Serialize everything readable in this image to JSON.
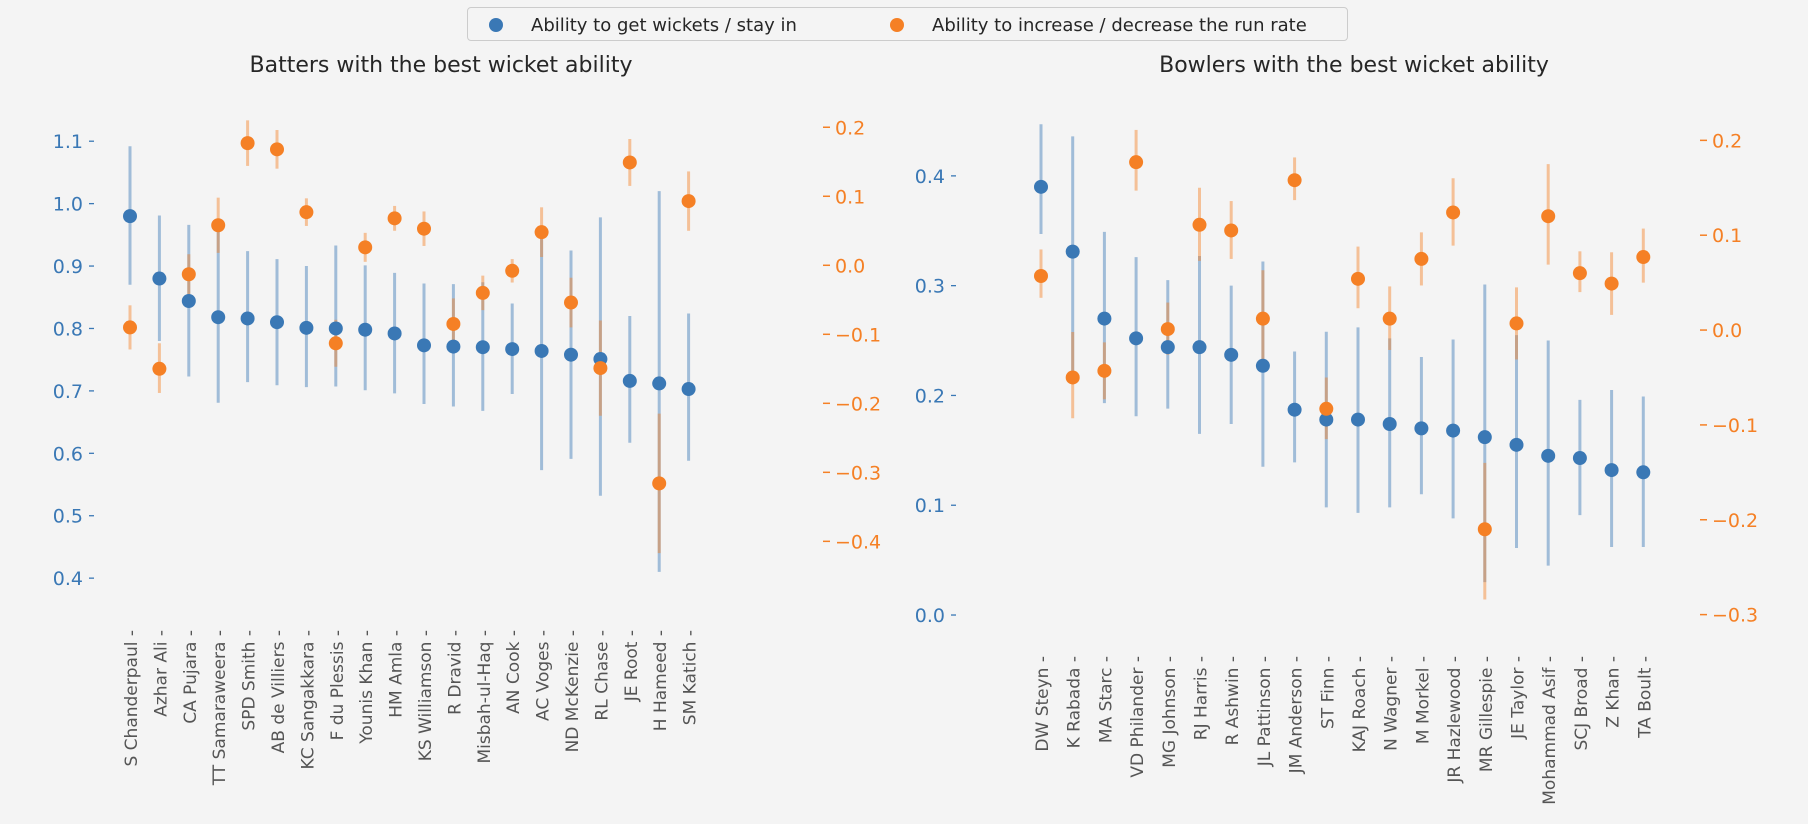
{
  "legend": {
    "wicket_label": "Ability to get wickets / stay in",
    "runrate_label": "Ability to increase / decrease the run rate"
  },
  "colors": {
    "wicket": "#3a78b5",
    "runrate": "#f58025",
    "left_axis": "#3a78b5",
    "right_axis": "#f58025",
    "background": "#f4f4f4"
  },
  "chart_data": [
    {
      "type": "scatter",
      "title": "Batters with the best wicket ability",
      "grid": false,
      "left_axis": {
        "series": "wicket",
        "ylim": [
          0.365,
          1.15
        ],
        "ticks": [
          "0.4",
          "0.5",
          "0.6",
          "0.7",
          "0.8",
          "0.9",
          "1.0",
          "1.1"
        ]
      },
      "right_axis": {
        "series": "runrate",
        "ylim": [
          -0.485,
          0.225
        ],
        "ticks": [
          "−0.4",
          "−0.3",
          "−0.2",
          "−0.1",
          "0.0",
          "0.1",
          "0.2"
        ]
      },
      "categories": [
        "S Chanderpaul",
        "Azhar Ali",
        "CA Pujara",
        "TT Samaraweera",
        "SPD Smith",
        "AB de Villiers",
        "KC Sangakkara",
        "F du Plessis",
        "Younis Khan",
        "HM Amla",
        "KS Williamson",
        "R Dravid",
        "Misbah-ul-Haq",
        "AN Cook",
        "AC Voges",
        "ND McKenzie",
        "RL Chase",
        "JE Root",
        "H Hameed",
        "SM Katich"
      ],
      "series": [
        {
          "name": "Ability to get wickets / stay in",
          "axis": "left",
          "values": [
            0.98,
            0.88,
            0.844,
            0.818,
            0.816,
            0.81,
            0.801,
            0.8,
            0.798,
            0.792,
            0.773,
            0.771,
            0.77,
            0.767,
            0.764,
            0.758,
            0.751,
            0.716,
            0.712,
            0.703
          ],
          "lower": [
            0.87,
            0.78,
            0.723,
            0.681,
            0.714,
            0.709,
            0.706,
            0.707,
            0.701,
            0.696,
            0.679,
            0.675,
            0.668,
            0.695,
            0.573,
            0.591,
            0.532,
            0.617,
            0.41,
            0.588
          ],
          "upper": [
            1.092,
            0.981,
            0.966,
            0.96,
            0.924,
            0.911,
            0.9,
            0.933,
            0.901,
            0.889,
            0.872,
            0.871,
            0.874,
            0.84,
            0.946,
            0.925,
            0.978,
            0.82,
            1.02,
            0.824
          ]
        },
        {
          "name": "Ability to increase / decrease the run rate",
          "axis": "right",
          "values": [
            -0.09,
            -0.15,
            -0.013,
            0.058,
            0.177,
            0.168,
            0.077,
            -0.113,
            0.026,
            0.068,
            0.053,
            -0.085,
            -0.04,
            -0.008,
            0.048,
            -0.054,
            -0.149,
            0.149,
            -0.316,
            0.093
          ],
          "lower": [
            -0.122,
            -0.185,
            -0.042,
            0.018,
            0.144,
            0.14,
            0.057,
            -0.147,
            0.005,
            0.05,
            0.028,
            -0.122,
            -0.065,
            -0.025,
            0.012,
            -0.09,
            -0.218,
            0.115,
            -0.417,
            0.05
          ],
          "upper": [
            -0.058,
            -0.113,
            0.016,
            0.098,
            0.21,
            0.196,
            0.097,
            -0.079,
            0.047,
            0.086,
            0.078,
            -0.048,
            -0.015,
            0.009,
            0.084,
            -0.018,
            -0.08,
            0.183,
            -0.215,
            0.136
          ]
        }
      ]
    },
    {
      "type": "scatter",
      "title": "Bowlers with the best wicket ability",
      "grid": false,
      "left_axis": {
        "series": "wicket",
        "ylim": [
          -0.01,
          0.46
        ],
        "ticks": [
          "0.0",
          "0.1",
          "0.2",
          "0.3",
          "0.4"
        ]
      },
      "right_axis": {
        "series": "runrate",
        "ylim": [
          -0.312,
          0.232
        ],
        "ticks": [
          "−0.3",
          "−0.2",
          "−0.1",
          "0.0",
          "0.1",
          "0.2"
        ]
      },
      "categories": [
        "DW Steyn",
        "K Rabada",
        "MA Starc",
        "VD Philander",
        "MG Johnson",
        "RJ Harris",
        "R Ashwin",
        "JL Pattinson",
        "JM Anderson",
        "ST Finn",
        "KAJ Roach",
        "N Wagner",
        "M Morkel",
        "JR Hazlewood",
        "MR Gillespie",
        "JE Taylor",
        "Mohammad Asif",
        "SCJ Broad",
        "Z Khan",
        "TA Boult"
      ],
      "series": [
        {
          "name": "Ability to get wickets / stay in",
          "axis": "left",
          "values": [
            0.39,
            0.331,
            0.27,
            0.252,
            0.244,
            0.244,
            0.237,
            0.227,
            0.187,
            0.178,
            0.178,
            0.174,
            0.17,
            0.168,
            0.162,
            0.155,
            0.145,
            0.143,
            0.132,
            0.13
          ],
          "lower": [
            0.347,
            0.217,
            0.193,
            0.181,
            0.188,
            0.165,
            0.174,
            0.135,
            0.139,
            0.098,
            0.093,
            0.098,
            0.11,
            0.088,
            0.03,
            0.061,
            0.045,
            0.091,
            0.062,
            0.062
          ],
          "upper": [
            0.447,
            0.436,
            0.349,
            0.326,
            0.305,
            0.327,
            0.3,
            0.322,
            0.24,
            0.258,
            0.262,
            0.252,
            0.235,
            0.251,
            0.301,
            0.255,
            0.25,
            0.196,
            0.205,
            0.199
          ]
        },
        {
          "name": "Ability to increase / decrease the run rate",
          "axis": "right",
          "values": [
            0.057,
            -0.05,
            -0.043,
            0.177,
            0.001,
            0.111,
            0.105,
            0.012,
            0.158,
            -0.083,
            0.054,
            0.012,
            0.075,
            0.124,
            -0.21,
            0.007,
            0.12,
            0.06,
            0.049,
            0.077
          ],
          "lower": [
            0.034,
            -0.093,
            -0.073,
            0.147,
            -0.026,
            0.073,
            0.075,
            -0.034,
            0.137,
            -0.115,
            0.023,
            -0.021,
            0.047,
            0.089,
            -0.284,
            -0.031,
            0.069,
            0.04,
            0.016,
            0.05
          ],
          "upper": [
            0.085,
            -0.002,
            -0.013,
            0.211,
            0.029,
            0.15,
            0.136,
            0.063,
            0.182,
            -0.05,
            0.088,
            0.046,
            0.103,
            0.16,
            -0.14,
            0.045,
            0.175,
            0.083,
            0.082,
            0.107
          ]
        }
      ]
    }
  ]
}
